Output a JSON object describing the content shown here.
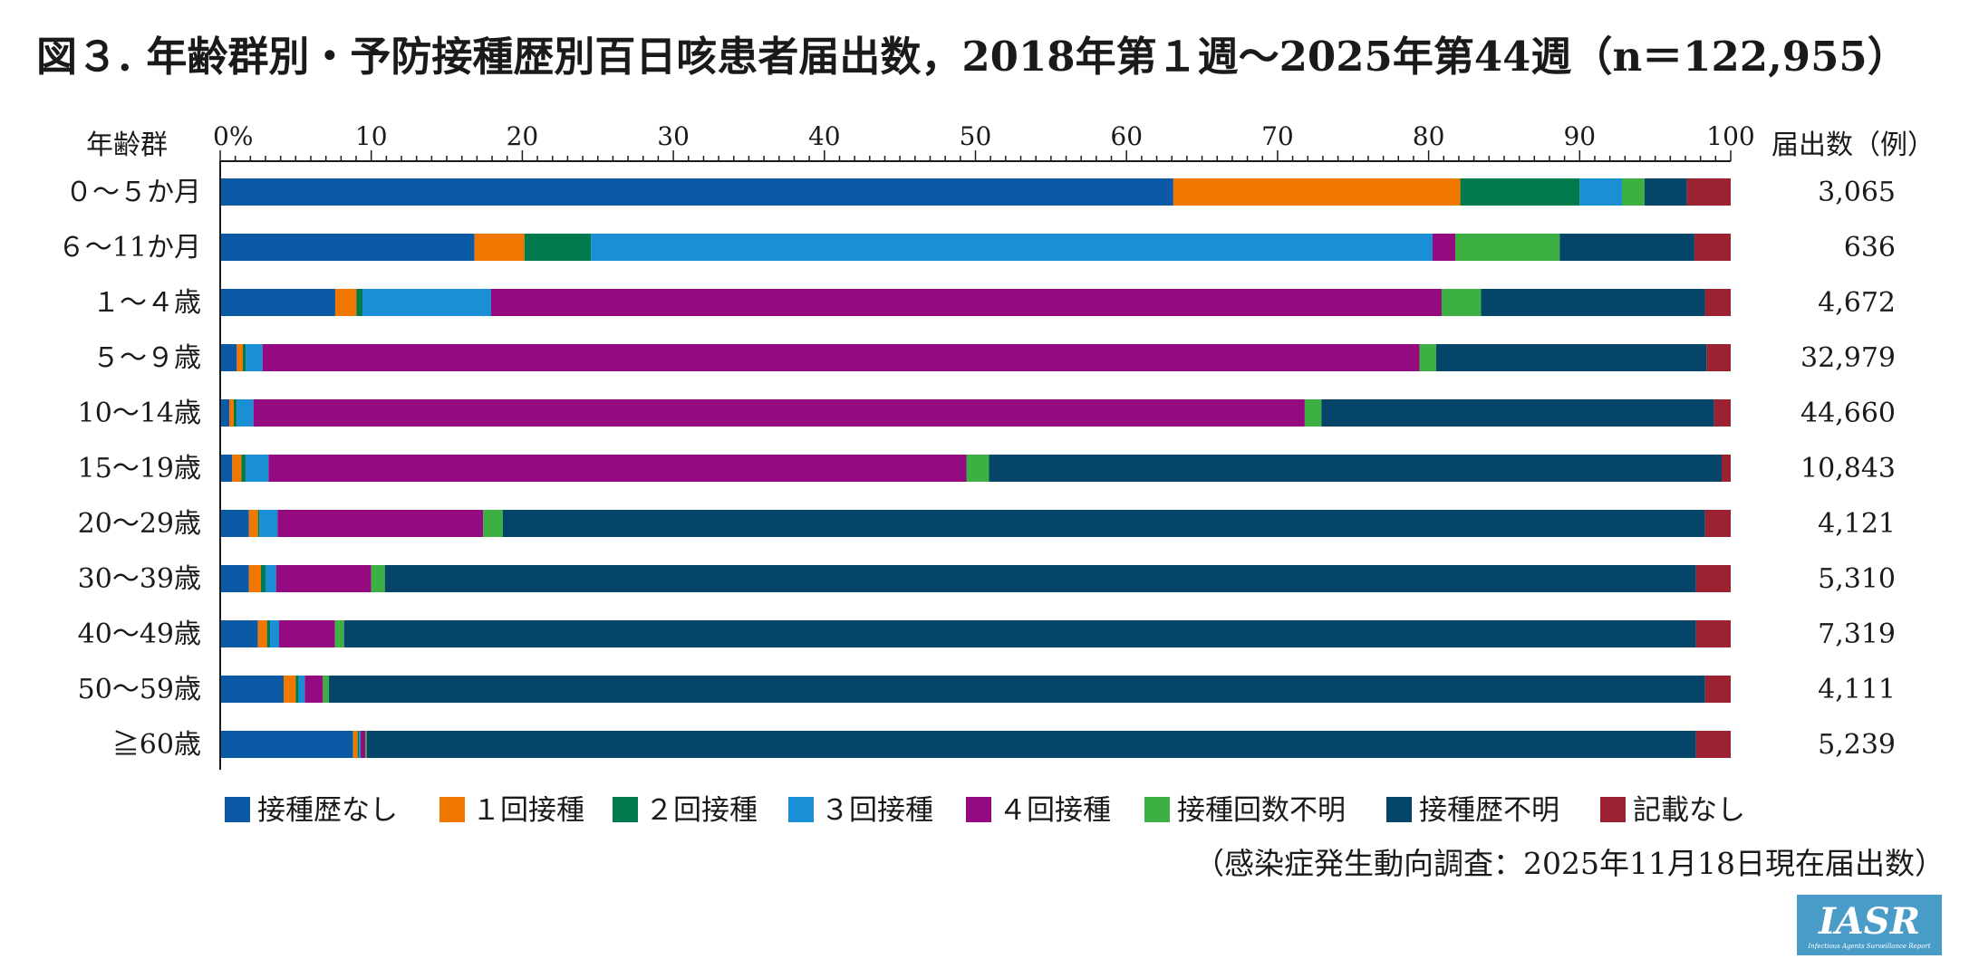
{
  "chart_data": {
    "type": "bar",
    "orientation": "horizontal",
    "stacked": true,
    "title": "図３. 年齢群別・予防接種歴別百日咳患者届出数，2018年第１週～2025年第44週（n＝122,955）",
    "ylabel": "年齢群",
    "xlabel": "",
    "xlim": [
      0,
      100
    ],
    "x_ticks": [
      "0%",
      "10",
      "20",
      "30",
      "40",
      "50",
      "60",
      "70",
      "80",
      "90",
      "100"
    ],
    "count_header": "届出数（例）",
    "categories": [
      "０～５か月",
      "６～11か月",
      "１～４歳",
      "５～９歳",
      "10～14歳",
      "15～19歳",
      "20～29歳",
      "30～39歳",
      "40～49歳",
      "50～59歳",
      "≧60歳"
    ],
    "counts": [
      "3,065",
      "636",
      "4,672",
      "32,979",
      "44,660",
      "10,843",
      "4,121",
      "5,310",
      "7,319",
      "4,111",
      "5,239"
    ],
    "series": [
      {
        "name": "接種歴なし",
        "color": "#0c5aa6",
        "values": [
          63.1,
          16.8,
          7.6,
          1.1,
          0.6,
          0.8,
          1.9,
          1.9,
          2.5,
          4.2,
          8.8
        ]
      },
      {
        "name": "１回接種",
        "color": "#f07800",
        "values": [
          19.0,
          3.3,
          1.4,
          0.4,
          0.3,
          0.6,
          0.6,
          0.8,
          0.6,
          0.8,
          0.3
        ]
      },
      {
        "name": "２回接種",
        "color": "#007a4d",
        "values": [
          7.9,
          4.4,
          0.4,
          0.2,
          0.2,
          0.3,
          0.1,
          0.3,
          0.2,
          0.2,
          0.1
        ]
      },
      {
        "name": "３回接種",
        "color": "#1a8fd6",
        "values": [
          2.8,
          55.6,
          8.5,
          1.1,
          1.1,
          1.5,
          1.2,
          0.7,
          0.6,
          0.4,
          0.1
        ]
      },
      {
        "name": "４回接種",
        "color": "#950a80",
        "values": [
          0.0,
          1.5,
          62.8,
          76.6,
          69.6,
          46.2,
          13.6,
          6.3,
          3.7,
          1.2,
          0.3
        ]
      },
      {
        "name": "接種回数不明",
        "color": "#3cb043",
        "values": [
          1.5,
          6.9,
          2.6,
          1.1,
          1.1,
          1.5,
          1.3,
          0.9,
          0.6,
          0.4,
          0.1
        ]
      },
      {
        "name": "接種歴不明",
        "color": "#044569",
        "values": [
          2.8,
          8.9,
          14.8,
          17.9,
          26.0,
          48.5,
          79.6,
          86.8,
          89.5,
          91.1,
          88.0
        ]
      },
      {
        "name": "記載なし",
        "color": "#9b2230",
        "values": [
          2.9,
          2.4,
          1.7,
          1.6,
          1.1,
          0.6,
          1.7,
          2.3,
          2.3,
          1.7,
          2.3
        ]
      }
    ],
    "source_note": "（感染症発生動向調査：2025年11月18日現在届出数）"
  },
  "logo": {
    "text": "IASR",
    "subtitle": "Infectious Agents Surveillance Report",
    "color": "#4a9cc8"
  }
}
